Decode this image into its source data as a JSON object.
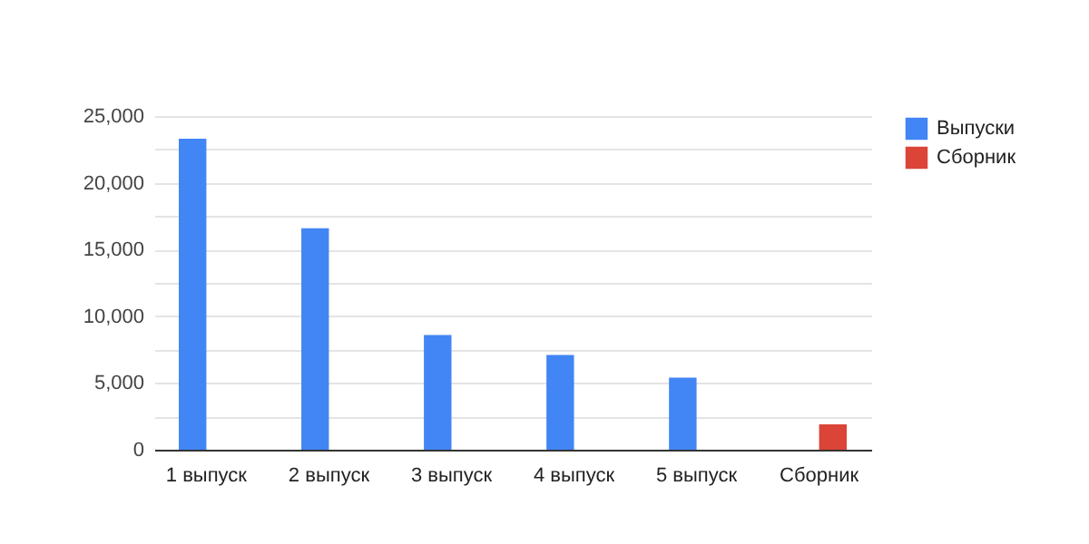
{
  "chart_data": {
    "type": "bar",
    "categories": [
      "1 выпуск",
      "2 выпуск",
      "3 выпуск",
      "4 выпуск",
      "5 выпуск",
      "Сборник"
    ],
    "series": [
      {
        "name": "Выпуски",
        "color": "#4285f4",
        "values": [
          23300,
          16600,
          8600,
          7100,
          5400,
          null
        ]
      },
      {
        "name": "Сборник",
        "color": "#db4437",
        "values": [
          null,
          null,
          null,
          null,
          null,
          1900
        ]
      }
    ],
    "ylim": [
      0,
      25000
    ],
    "yticks": [
      0,
      {
        "value": 2500,
        "label": null
      },
      {
        "value": 5000,
        "label": "5,000"
      },
      {
        "value": 7500,
        "label": null
      },
      {
        "value": 10000,
        "label": "10,000"
      },
      {
        "value": 12500,
        "label": null
      },
      {
        "value": 15000,
        "label": "15,000"
      },
      {
        "value": 17500,
        "label": null
      },
      {
        "value": 20000,
        "label": "20,000"
      },
      {
        "value": 22500,
        "label": null
      },
      {
        "value": 25000,
        "label": "25,000"
      }
    ],
    "grid": "y",
    "legend": "top right"
  }
}
